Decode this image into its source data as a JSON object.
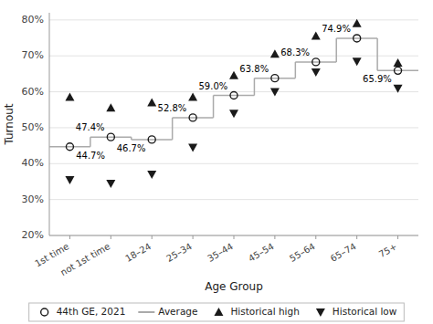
{
  "chart_data": {
    "type": "line",
    "xlabel": "Age Group",
    "ylabel": "Turnout",
    "categories": [
      "1st time",
      "not 1st time",
      "18–24",
      "25–34",
      "35–44",
      "45–54",
      "55–64",
      "65–74",
      "75+"
    ],
    "series": [
      {
        "name": "44th GE, 2021",
        "type": "scatter",
        "marker": "open-circle",
        "color": "#1a1a1a",
        "values": [
          44.7,
          47.4,
          46.7,
          52.8,
          59.0,
          63.8,
          68.3,
          74.9,
          65.9
        ],
        "value_labels": [
          "44.7%",
          "47.4%",
          "46.7%",
          "52.8%",
          "59.0%",
          "63.8%",
          "68.3%",
          "74.9%",
          "65.9%"
        ]
      },
      {
        "name": "Average",
        "type": "step",
        "color": "#aaaaaa",
        "values": [
          44.7,
          47.4,
          46.7,
          52.8,
          59.0,
          63.8,
          68.3,
          74.9,
          65.9
        ]
      },
      {
        "name": "Historical high",
        "type": "scatter",
        "marker": "triangle-up",
        "color": "#1a1a1a",
        "values": [
          58.5,
          55.5,
          57.0,
          58.5,
          64.5,
          70.5,
          75.5,
          79.0,
          68.0
        ]
      },
      {
        "name": "Historical low",
        "type": "scatter",
        "marker": "triangle-down",
        "color": "#1a1a1a",
        "values": [
          35.5,
          34.5,
          37.0,
          44.5,
          54.0,
          60.0,
          65.5,
          68.5,
          61.0
        ]
      }
    ],
    "ylim": [
      20,
      82
    ],
    "yticks": [
      {
        "value": 20,
        "label": "20%"
      },
      {
        "value": 30,
        "label": "30%"
      },
      {
        "value": 40,
        "label": "40%"
      },
      {
        "value": 50,
        "label": "50%"
      },
      {
        "value": 60,
        "label": "60%"
      },
      {
        "value": 70,
        "label": "70%"
      },
      {
        "value": 80,
        "label": "80%"
      }
    ],
    "grid": true,
    "legend": "bottom",
    "data_labels": true
  }
}
